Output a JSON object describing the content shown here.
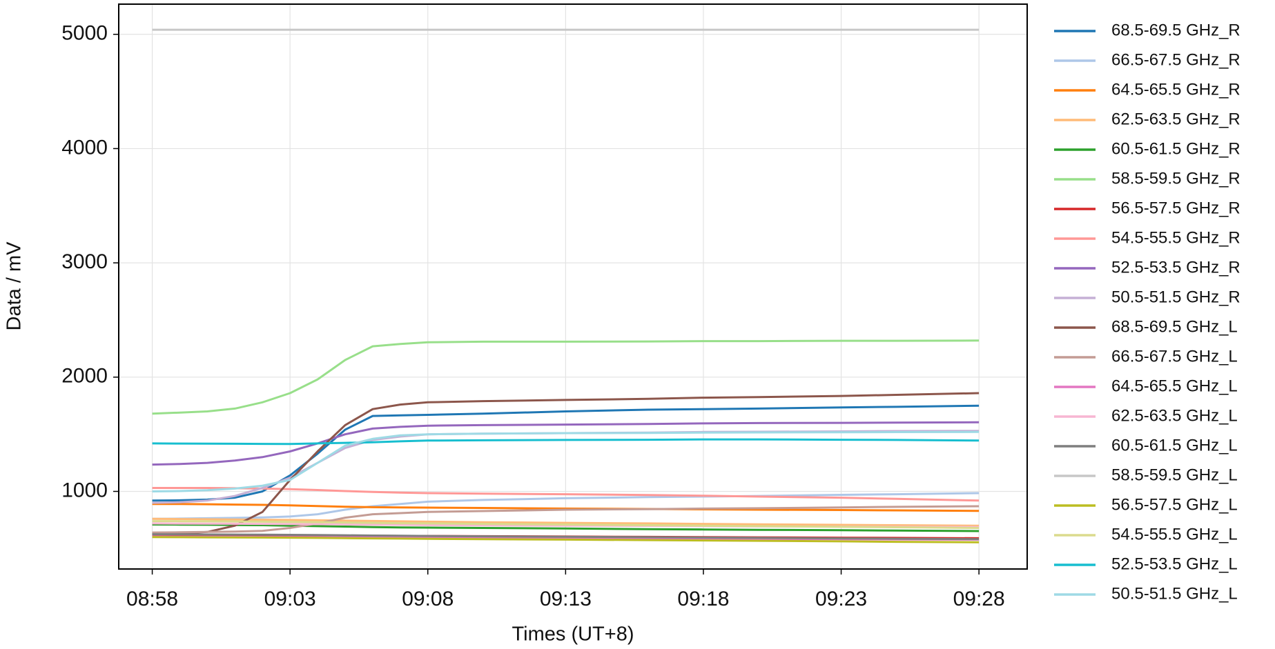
{
  "chart_data": {
    "type": "line",
    "xlabel": "Times (UT+8)",
    "ylabel": "Data / mV",
    "x": [
      "08:58",
      "08:59",
      "09:00",
      "09:01",
      "09:02",
      "09:03",
      "09:04",
      "09:05",
      "09:06",
      "09:07",
      "09:08",
      "09:10",
      "09:13",
      "09:16",
      "09:18",
      "09:20",
      "09:23",
      "09:25",
      "09:28"
    ],
    "xlim": [
      "08:56:47",
      "09:29:45"
    ],
    "xticks": [
      "08:58",
      "09:03",
      "09:08",
      "09:13",
      "09:18",
      "09:23",
      "09:28"
    ],
    "ylim": [
      321,
      5264
    ],
    "yticks": [
      1000,
      2000,
      3000,
      4000,
      5000
    ],
    "grid": true,
    "legend": "right",
    "series": [
      {
        "name": "68.5-69.5 GHz_R",
        "color": "#1f77b4",
        "values": [
          920,
          922,
          928,
          945,
          1000,
          1140,
          1330,
          1540,
          1660,
          1665,
          1670,
          1680,
          1700,
          1715,
          1720,
          1725,
          1735,
          1740,
          1750
        ]
      },
      {
        "name": "66.5-67.5 GHz_R",
        "color": "#aec7e8",
        "values": [
          760,
          762,
          765,
          768,
          772,
          780,
          800,
          840,
          870,
          890,
          910,
          925,
          940,
          950,
          955,
          960,
          970,
          975,
          985
        ]
      },
      {
        "name": "64.5-65.5 GHz_R",
        "color": "#ff7f0e",
        "values": [
          890,
          890,
          888,
          885,
          882,
          878,
          872,
          866,
          862,
          860,
          858,
          855,
          850,
          846,
          843,
          840,
          837,
          834,
          830
        ]
      },
      {
        "name": "62.5-63.5 GHz_R",
        "color": "#ffbb78",
        "values": [
          760,
          758,
          756,
          754,
          752,
          750,
          747,
          744,
          741,
          738,
          735,
          730,
          725,
          720,
          716,
          712,
          707,
          704,
          700
        ]
      },
      {
        "name": "60.5-61.5 GHz_R",
        "color": "#2ca02c",
        "values": [
          710,
          709,
          708,
          706,
          704,
          700,
          696,
          692,
          688,
          685,
          683,
          680,
          675,
          670,
          667,
          664,
          660,
          657,
          653
        ]
      },
      {
        "name": "58.5-59.5 GHz_R",
        "color": "#98df8a",
        "values": [
          1680,
          1690,
          1700,
          1725,
          1780,
          1860,
          1980,
          2150,
          2270,
          2290,
          2305,
          2310,
          2310,
          2312,
          2315,
          2315,
          2318,
          2318,
          2320
        ]
      },
      {
        "name": "56.5-57.5 GHz_R",
        "color": "#d62728",
        "values": [
          620,
          619,
          618,
          617,
          616,
          615,
          614,
          613,
          612,
          611,
          610,
          608,
          605,
          602,
          600,
          598,
          595,
          593,
          590
        ]
      },
      {
        "name": "54.5-55.5 GHz_R",
        "color": "#ff9896",
        "values": [
          1030,
          1030,
          1030,
          1028,
          1025,
          1020,
          1012,
          1003,
          995,
          990,
          985,
          980,
          975,
          968,
          962,
          955,
          945,
          935,
          920
        ]
      },
      {
        "name": "52.5-53.5 GHz_R",
        "color": "#9467bd",
        "values": [
          1235,
          1240,
          1250,
          1270,
          1300,
          1350,
          1420,
          1500,
          1550,
          1565,
          1575,
          1580,
          1585,
          1590,
          1595,
          1598,
          1600,
          1602,
          1605
        ]
      },
      {
        "name": "50.5-51.5 GHz_R",
        "color": "#c5b0d5",
        "values": [
          900,
          905,
          920,
          960,
          1030,
          1120,
          1250,
          1380,
          1450,
          1480,
          1500,
          1505,
          1510,
          1515,
          1520,
          1522,
          1525,
          1528,
          1530
        ]
      },
      {
        "name": "68.5-69.5 GHz_L",
        "color": "#8c564b",
        "values": [
          630,
          632,
          645,
          700,
          820,
          1100,
          1350,
          1580,
          1720,
          1760,
          1780,
          1790,
          1800,
          1810,
          1820,
          1825,
          1835,
          1845,
          1860
        ]
      },
      {
        "name": "66.5-67.5 GHz_L",
        "color": "#c49c94",
        "values": [
          640,
          642,
          645,
          648,
          655,
          680,
          720,
          770,
          800,
          810,
          820,
          828,
          840,
          845,
          850,
          853,
          860,
          865,
          870
        ]
      },
      {
        "name": "64.5-65.5 GHz_L",
        "color": "#e377c2",
        "values": [
          605,
          604,
          603,
          602,
          601,
          600,
          599,
          598,
          597,
          596,
          595,
          593,
          590,
          588,
          586,
          584,
          582,
          580,
          578
        ]
      },
      {
        "name": "62.5-63.5 GHz_L",
        "color": "#f7b6d2",
        "values": [
          720,
          719,
          718,
          717,
          716,
          715,
          713,
          711,
          709,
          707,
          705,
          703,
          700,
          698,
          696,
          694,
          692,
          690,
          688
        ]
      },
      {
        "name": "60.5-61.5 GHz_L",
        "color": "#7f7f7f",
        "values": [
          625,
          624,
          623,
          622,
          621,
          620,
          618,
          616,
          614,
          612,
          610,
          607,
          603,
          599,
          596,
          593,
          589,
          586,
          582
        ]
      },
      {
        "name": "58.5-59.5 GHz_L",
        "color": "#c7c7c7",
        "values": [
          5040,
          5040,
          5040,
          5040,
          5040,
          5040,
          5040,
          5040,
          5040,
          5040,
          5040,
          5040,
          5040,
          5040,
          5040,
          5040,
          5040,
          5040,
          5040
        ]
      },
      {
        "name": "56.5-57.5 GHz_L",
        "color": "#bcbd22",
        "values": [
          600,
          599,
          598,
          597,
          596,
          595,
          593,
          591,
          589,
          587,
          585,
          582,
          578,
          574,
          571,
          568,
          563,
          559,
          555
        ]
      },
      {
        "name": "54.5-55.5 GHz_L",
        "color": "#dbdb8d",
        "values": [
          740,
          739,
          738,
          737,
          735,
          733,
          731,
          728,
          725,
          722,
          720,
          716,
          710,
          704,
          700,
          696,
          690,
          686,
          680
        ]
      },
      {
        "name": "52.5-53.5 GHz_L",
        "color": "#17becf",
        "values": [
          1420,
          1419,
          1418,
          1417,
          1416,
          1415,
          1420,
          1425,
          1430,
          1438,
          1445,
          1447,
          1450,
          1452,
          1455,
          1455,
          1452,
          1450,
          1445
        ]
      },
      {
        "name": "50.5-51.5 GHz_L",
        "color": "#9edae5",
        "values": [
          1000,
          1003,
          1010,
          1025,
          1050,
          1100,
          1250,
          1400,
          1460,
          1490,
          1500,
          1505,
          1510,
          1512,
          1515,
          1516,
          1518,
          1519,
          1520
        ]
      }
    ]
  }
}
